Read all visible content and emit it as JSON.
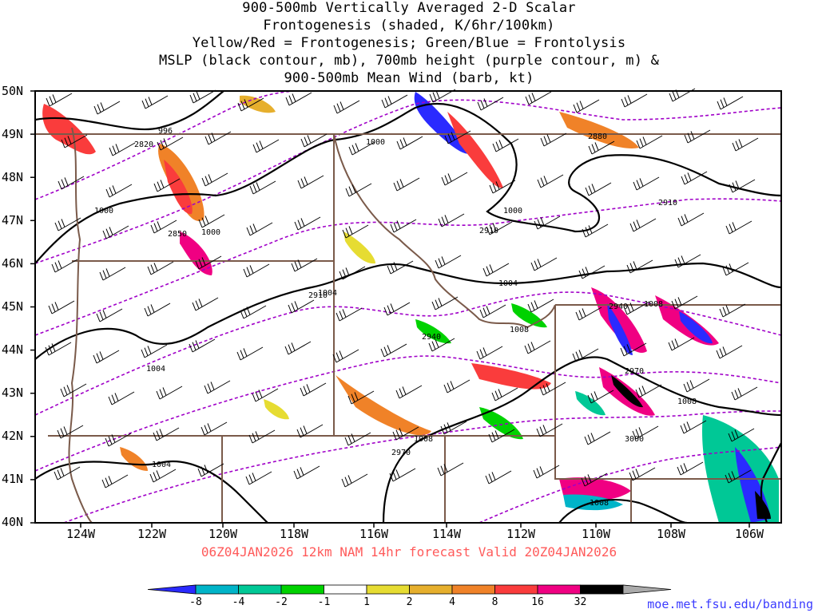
{
  "title": {
    "line1": "900-500mb Vertically Averaged 2-D Scalar",
    "line2": "Frontogenesis (shaded, K/6hr/100km)",
    "line3": "Yellow/Red = Frontogenesis;  Green/Blue = Frontolysis",
    "line4": "MSLP (black contour, mb), 700mb height (purple contour, m) &",
    "line5": "900-500mb Mean Wind (barb, kt)"
  },
  "lat_labels": [
    "50N",
    "49N",
    "48N",
    "47N",
    "46N",
    "45N",
    "44N",
    "43N",
    "42N",
    "41N",
    "40N"
  ],
  "lon_labels": [
    "124W",
    "122W",
    "120W",
    "118W",
    "116W",
    "114W",
    "112W",
    "110W",
    "108W",
    "106W"
  ],
  "pressure_labels": [
    "996",
    "1000",
    "1000",
    "1000",
    "1000",
    "1004",
    "1004",
    "1008",
    "1004",
    "1008",
    "1008",
    "1008",
    "1004",
    "1008"
  ],
  "height_labels": [
    "2820",
    "2850",
    "2880",
    "2910",
    "2910",
    "2940",
    "2940",
    "2970",
    "2970",
    "3000",
    "2910"
  ],
  "footer": "06Z04JAN2026 12km NAM 14hr forecast Valid 20Z04JAN2026",
  "credit": "moe.met.fsu.edu/banding",
  "legend": {
    "values": [
      "-8",
      "-4",
      "-2",
      "-1",
      "1",
      "2",
      "4",
      "8",
      "16",
      "32"
    ],
    "colors": [
      "#2a2aff",
      "#00b4c8",
      "#00c896",
      "#00d200",
      "#ffffff",
      "#e6dc32",
      "#e6af2d",
      "#f08228",
      "#fa3c3c",
      "#f00082",
      "#000000",
      "#aaaaaa"
    ]
  },
  "colors": {
    "pressure_contour": "#000000",
    "height_contour": "#a000c8",
    "borders": "#7a5a4a",
    "footer": "#ff5a5a",
    "credit": "#3b3bff"
  }
}
